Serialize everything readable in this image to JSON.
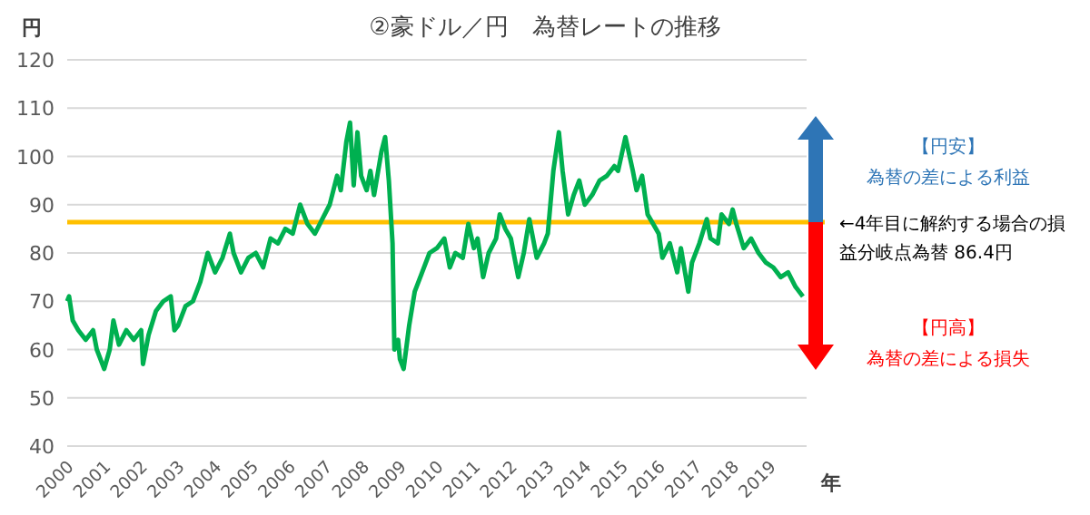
{
  "chart_data": {
    "type": "line",
    "title": "②豪ドル／円　為替レートの推移",
    "ylabel": "円",
    "xlabel": "年",
    "x": [
      2000.0,
      2000.05,
      2000.15,
      2000.3,
      2000.5,
      2000.7,
      2000.8,
      2000.9,
      2001.0,
      2001.15,
      2001.25,
      2001.4,
      2001.6,
      2001.8,
      2001.9,
      2002.0,
      2002.05,
      2002.2,
      2002.4,
      2002.6,
      2002.8,
      2002.9,
      2003.0,
      2003.2,
      2003.4,
      2003.6,
      2003.8,
      2004.0,
      2004.2,
      2004.4,
      2004.5,
      2004.7,
      2004.9,
      2005.1,
      2005.3,
      2005.5,
      2005.7,
      2005.9,
      2006.1,
      2006.3,
      2006.5,
      2006.7,
      2006.9,
      2007.1,
      2007.3,
      2007.4,
      2007.55,
      2007.65,
      2007.75,
      2007.85,
      2007.95,
      2008.1,
      2008.2,
      2008.3,
      2008.5,
      2008.6,
      2008.7,
      2008.8,
      2008.85,
      2008.95,
      2009.0,
      2009.1,
      2009.25,
      2009.4,
      2009.6,
      2009.8,
      2010.0,
      2010.2,
      2010.35,
      2010.5,
      2010.7,
      2010.85,
      2011.0,
      2011.1,
      2011.25,
      2011.4,
      2011.6,
      2011.7,
      2011.85,
      2012.0,
      2012.2,
      2012.35,
      2012.5,
      2012.7,
      2012.9,
      2013.0,
      2013.15,
      2013.3,
      2013.4,
      2013.55,
      2013.7,
      2013.85,
      2014.0,
      2014.2,
      2014.4,
      2014.6,
      2014.8,
      2014.9,
      2015.1,
      2015.3,
      2015.4,
      2015.55,
      2015.7,
      2015.85,
      2016.0,
      2016.1,
      2016.3,
      2016.5,
      2016.6,
      2016.8,
      2016.9,
      2017.1,
      2017.3,
      2017.4,
      2017.6,
      2017.7,
      2017.9,
      2018.0,
      2018.1,
      2018.3,
      2018.5,
      2018.7,
      2018.9,
      2019.1,
      2019.3,
      2019.5,
      2019.7,
      2019.9
    ],
    "series": [
      {
        "color": "#00b050",
        "values": [
          70,
          71,
          66,
          64,
          62,
          64,
          60,
          58,
          56,
          60,
          66,
          61,
          64,
          62,
          63,
          64,
          57,
          63,
          68,
          70,
          71,
          64,
          65,
          69,
          70,
          74,
          80,
          76,
          79,
          84,
          80,
          76,
          79,
          80,
          77,
          83,
          82,
          85,
          84,
          90,
          86,
          84,
          87,
          90,
          96,
          93,
          103,
          107,
          94,
          105,
          96,
          93,
          97,
          92,
          101,
          104,
          95,
          82,
          60,
          62,
          58,
          56,
          65,
          72,
          76,
          80,
          81,
          83,
          77,
          80,
          79,
          86,
          81,
          83,
          75,
          80,
          83,
          88,
          85,
          83,
          75,
          80,
          87,
          79,
          82,
          84,
          97,
          105,
          97,
          88,
          92,
          95,
          90,
          92,
          95,
          96,
          98,
          97,
          104,
          97,
          93,
          96,
          88,
          86,
          84,
          79,
          82,
          76,
          81,
          72,
          78,
          82,
          87,
          83,
          82,
          88,
          86,
          89,
          86,
          81,
          83,
          80,
          78,
          77,
          75,
          76,
          73,
          71
        ]
      }
    ],
    "xlim": [
      2000,
      2020
    ],
    "xticks": [
      2000,
      2001,
      2002,
      2003,
      2004,
      2005,
      2006,
      2007,
      2008,
      2009,
      2010,
      2011,
      2012,
      2013,
      2014,
      2015,
      2016,
      2017,
      2018,
      2019
    ],
    "ylim": [
      40,
      120
    ],
    "yticks": [
      40,
      50,
      60,
      70,
      80,
      90,
      100,
      110,
      120
    ],
    "grid": "y",
    "ref_lines": [
      {
        "axis": "y",
        "value": 86.4,
        "label": "←4年目に解約する場合の損益分岐点為替 86.4円",
        "color": "#ffc000"
      }
    ],
    "annotations": [
      "【円安】",
      "為替の差による利益",
      "【円高】",
      "為替の差による損失"
    ]
  }
}
